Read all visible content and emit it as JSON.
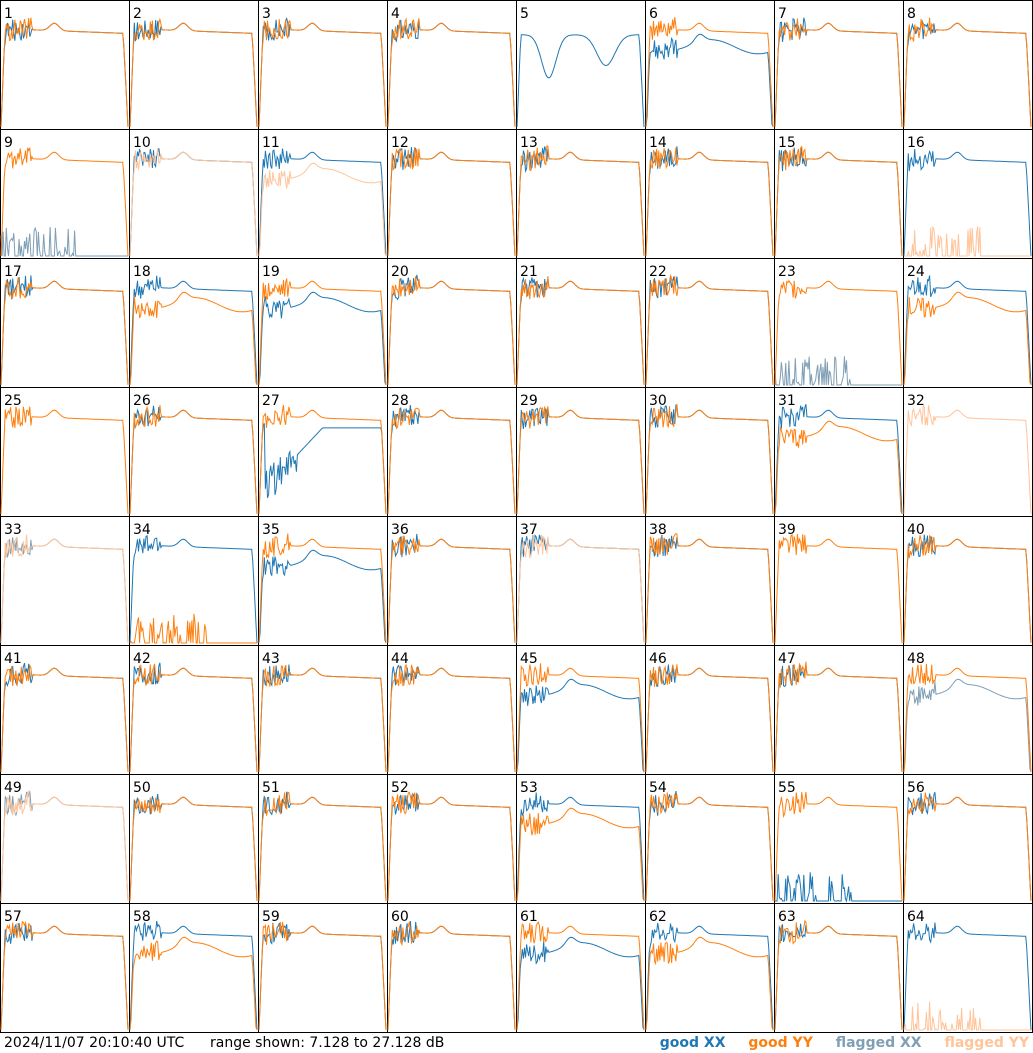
{
  "footer": {
    "timestamp": "2024/11/07 20:10:40 UTC",
    "range_text": "range shown: 7.128 to 27.128 dB",
    "legend": [
      {
        "label": "good XX",
        "color": "#1f77b4"
      },
      {
        "label": "good YY",
        "color": "#ff7f0e"
      },
      {
        "label": "flagged XX",
        "color": "#7f9fb5"
      },
      {
        "label": "flagged YY",
        "color": "#ffc49a"
      }
    ]
  },
  "chart_data": {
    "type": "line",
    "grid": {
      "rows": 8,
      "cols": 8
    },
    "ylim_db": [
      7.128,
      27.128
    ],
    "series_names": [
      "good XX",
      "good YY",
      "flagged XX",
      "flagged YY"
    ],
    "colors": {
      "good_xx": "#1f77b4",
      "good_yy": "#ff7f0e",
      "flagged_xx": "#7f9fb5",
      "flagged_yy": "#ffc49a"
    },
    "panels": [
      {
        "id": "1",
        "xx": "good",
        "yy": "good",
        "shape": "normal"
      },
      {
        "id": "2",
        "xx": "good",
        "yy": "good",
        "shape": "normal"
      },
      {
        "id": "3",
        "xx": "good",
        "yy": "good",
        "shape": "normal"
      },
      {
        "id": "4",
        "xx": "good",
        "yy": "good",
        "shape": "normal"
      },
      {
        "id": "5",
        "xx": "good",
        "yy": "good",
        "shape": "xx_only_deep_dip"
      },
      {
        "id": "6",
        "xx": "good",
        "yy": "good",
        "shape": "xx_low"
      },
      {
        "id": "7",
        "xx": "good",
        "yy": "good",
        "shape": "normal"
      },
      {
        "id": "8",
        "xx": "good",
        "yy": "good",
        "shape": "normal"
      },
      {
        "id": "9",
        "xx": "flagged",
        "yy": "good",
        "shape": "xx_dead"
      },
      {
        "id": "10",
        "xx": "good",
        "yy": "flagged",
        "shape": "normal"
      },
      {
        "id": "11",
        "xx": "good",
        "yy": "flagged",
        "shape": "yy_low"
      },
      {
        "id": "12",
        "xx": "good",
        "yy": "good",
        "shape": "normal"
      },
      {
        "id": "13",
        "xx": "good",
        "yy": "good",
        "shape": "normal"
      },
      {
        "id": "14",
        "xx": "good",
        "yy": "good",
        "shape": "normal"
      },
      {
        "id": "15",
        "xx": "good",
        "yy": "good",
        "shape": "normal"
      },
      {
        "id": "16",
        "xx": "good",
        "yy": "flagged",
        "shape": "yy_dead"
      },
      {
        "id": "17",
        "xx": "good",
        "yy": "good",
        "shape": "normal"
      },
      {
        "id": "18",
        "xx": "good",
        "yy": "good",
        "shape": "yy_low"
      },
      {
        "id": "19",
        "xx": "good",
        "yy": "good",
        "shape": "xx_low"
      },
      {
        "id": "20",
        "xx": "good",
        "yy": "good",
        "shape": "normal"
      },
      {
        "id": "21",
        "xx": "good",
        "yy": "good",
        "shape": "normal"
      },
      {
        "id": "22",
        "xx": "good",
        "yy": "good",
        "shape": "normal"
      },
      {
        "id": "23",
        "xx": "flagged",
        "yy": "good",
        "shape": "xx_dead"
      },
      {
        "id": "24",
        "xx": "good",
        "yy": "good",
        "shape": "yy_low"
      },
      {
        "id": "25",
        "xx": "good",
        "yy": "good",
        "shape": "yy_only"
      },
      {
        "id": "26",
        "xx": "good",
        "yy": "good",
        "shape": "normal"
      },
      {
        "id": "27",
        "xx": "good",
        "yy": "good",
        "shape": "xx_rising"
      },
      {
        "id": "28",
        "xx": "good",
        "yy": "good",
        "shape": "normal"
      },
      {
        "id": "29",
        "xx": "good",
        "yy": "good",
        "shape": "normal"
      },
      {
        "id": "30",
        "xx": "good",
        "yy": "good",
        "shape": "normal"
      },
      {
        "id": "31",
        "xx": "good",
        "yy": "good",
        "shape": "yy_low"
      },
      {
        "id": "32",
        "xx": "flagged",
        "yy": "flagged",
        "shape": "yy_only"
      },
      {
        "id": "33",
        "xx": "flagged",
        "yy": "flagged",
        "shape": "normal"
      },
      {
        "id": "34",
        "xx": "good",
        "yy": "good",
        "shape": "yy_dead"
      },
      {
        "id": "35",
        "xx": "good",
        "yy": "good",
        "shape": "xx_low"
      },
      {
        "id": "36",
        "xx": "good",
        "yy": "good",
        "shape": "normal"
      },
      {
        "id": "37",
        "xx": "good",
        "yy": "flagged",
        "shape": "normal"
      },
      {
        "id": "38",
        "xx": "good",
        "yy": "good",
        "shape": "normal"
      },
      {
        "id": "39",
        "xx": "good",
        "yy": "good",
        "shape": "yy_only"
      },
      {
        "id": "40",
        "xx": "good",
        "yy": "good",
        "shape": "normal"
      },
      {
        "id": "41",
        "xx": "good",
        "yy": "good",
        "shape": "normal"
      },
      {
        "id": "42",
        "xx": "good",
        "yy": "good",
        "shape": "normal"
      },
      {
        "id": "43",
        "xx": "good",
        "yy": "good",
        "shape": "normal"
      },
      {
        "id": "44",
        "xx": "good",
        "yy": "good",
        "shape": "normal"
      },
      {
        "id": "45",
        "xx": "good",
        "yy": "good",
        "shape": "xx_low"
      },
      {
        "id": "46",
        "xx": "good",
        "yy": "good",
        "shape": "normal"
      },
      {
        "id": "47",
        "xx": "good",
        "yy": "good",
        "shape": "normal"
      },
      {
        "id": "48",
        "xx": "flagged",
        "yy": "good",
        "shape": "xx_low"
      },
      {
        "id": "49",
        "xx": "flagged",
        "yy": "flagged",
        "shape": "normal"
      },
      {
        "id": "50",
        "xx": "good",
        "yy": "good",
        "shape": "normal"
      },
      {
        "id": "51",
        "xx": "good",
        "yy": "good",
        "shape": "normal"
      },
      {
        "id": "52",
        "xx": "good",
        "yy": "good",
        "shape": "normal"
      },
      {
        "id": "53",
        "xx": "good",
        "yy": "good",
        "shape": "yy_low"
      },
      {
        "id": "54",
        "xx": "good",
        "yy": "good",
        "shape": "normal"
      },
      {
        "id": "55",
        "xx": "good",
        "yy": "good",
        "shape": "xx_dead"
      },
      {
        "id": "56",
        "xx": "good",
        "yy": "good",
        "shape": "normal"
      },
      {
        "id": "57",
        "xx": "good",
        "yy": "good",
        "shape": "normal"
      },
      {
        "id": "58",
        "xx": "good",
        "yy": "good",
        "shape": "yy_low"
      },
      {
        "id": "59",
        "xx": "good",
        "yy": "good",
        "shape": "normal"
      },
      {
        "id": "60",
        "xx": "good",
        "yy": "good",
        "shape": "normal"
      },
      {
        "id": "61",
        "xx": "good",
        "yy": "good",
        "shape": "xx_low"
      },
      {
        "id": "62",
        "xx": "good",
        "yy": "good",
        "shape": "yy_low"
      },
      {
        "id": "63",
        "xx": "good",
        "yy": "good",
        "shape": "normal"
      },
      {
        "id": "64",
        "xx": "good",
        "yy": "flagged",
        "shape": "yy_dead"
      }
    ]
  }
}
